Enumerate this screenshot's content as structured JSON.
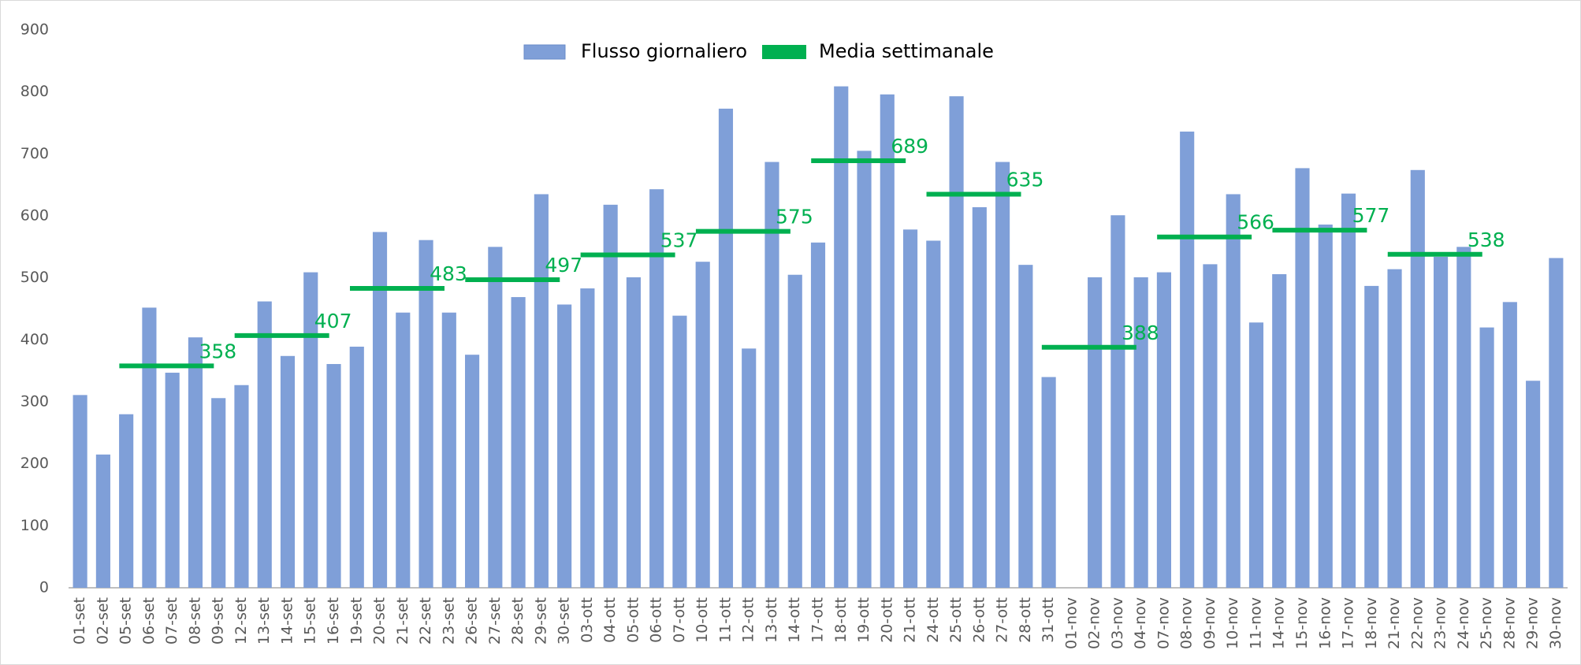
{
  "chart_data": {
    "type": "bar",
    "categories": [
      "01-set",
      "02-set",
      "05-set",
      "06-set",
      "07-set",
      "08-set",
      "09-set",
      "12-set",
      "13-set",
      "14-set",
      "15-set",
      "16-set",
      "19-set",
      "20-set",
      "21-set",
      "22-set",
      "23-set",
      "26-set",
      "27-set",
      "28-set",
      "29-set",
      "30-set",
      "03-ott",
      "04-ott",
      "05-ott",
      "06-ott",
      "07-ott",
      "10-ott",
      "11-ott",
      "12-ott",
      "13-ott",
      "14-ott",
      "17-ott",
      "18-ott",
      "19-ott",
      "20-ott",
      "21-ott",
      "24-ott",
      "25-ott",
      "26-ott",
      "27-ott",
      "28-ott",
      "31-ott",
      "01-nov",
      "02-nov",
      "03-nov",
      "04-nov",
      "07-nov",
      "08-nov",
      "09-nov",
      "10-nov",
      "11-nov",
      "14-nov",
      "15-nov",
      "16-nov",
      "17-nov",
      "18-nov",
      "21-nov",
      "22-nov",
      "23-nov",
      "24-nov",
      "25-nov",
      "28-nov",
      "29-nov",
      "30-nov"
    ],
    "series": [
      {
        "name": "Flusso giornaliero",
        "color": "#7f9fd8",
        "values": [
          311,
          215,
          280,
          452,
          347,
          404,
          306,
          327,
          462,
          374,
          509,
          361,
          389,
          574,
          444,
          561,
          444,
          376,
          550,
          469,
          635,
          457,
          483,
          618,
          501,
          643,
          439,
          526,
          773,
          386,
          687,
          505,
          557,
          809,
          705,
          796,
          578,
          560,
          793,
          614,
          687,
          521,
          340,
          null,
          501,
          601,
          501,
          509,
          736,
          522,
          635,
          428,
          506,
          677,
          586,
          636,
          487,
          514,
          674,
          534,
          550,
          420,
          461,
          334,
          532
        ]
      },
      {
        "name": "Media settimanale",
        "color": "#00b050",
        "type": "line",
        "values": [
          null,
          null,
          358,
          358,
          358,
          358,
          358,
          407,
          407,
          407,
          407,
          407,
          483,
          483,
          483,
          483,
          483,
          497,
          497,
          497,
          497,
          497,
          537,
          537,
          537,
          537,
          537,
          575,
          575,
          575,
          575,
          575,
          689,
          689,
          689,
          689,
          689,
          635,
          635,
          635,
          635,
          635,
          388,
          388,
          388,
          388,
          388,
          566,
          566,
          566,
          566,
          566,
          577,
          577,
          577,
          577,
          577,
          538,
          538,
          538,
          538,
          538,
          null,
          null,
          null
        ]
      }
    ],
    "ylim": [
      0,
      900
    ],
    "yticks": [
      0,
      100,
      200,
      300,
      400,
      500,
      600,
      700,
      800,
      900
    ],
    "grid": false,
    "legend": "top"
  }
}
